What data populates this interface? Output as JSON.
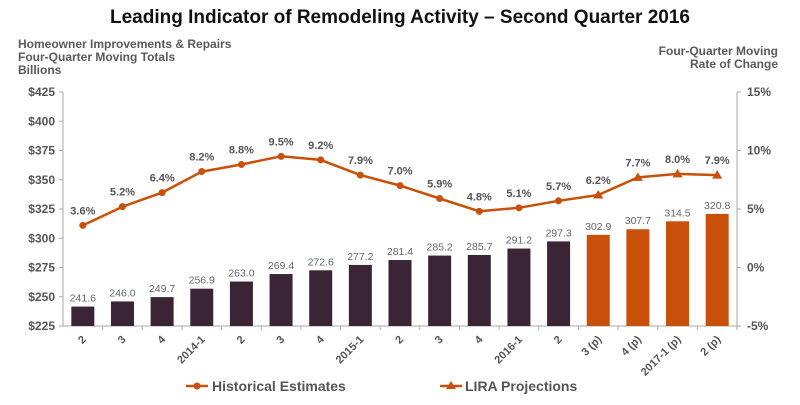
{
  "chart_data": {
    "type": "bar+line",
    "title": "Leading Indicator of Remodeling Activity – Second Quarter 2016",
    "ylabel_left": [
      "Homeowner Improvements & Repairs",
      "Four-Quarter Moving Totals",
      "Billions"
    ],
    "ylabel_right": [
      "Four-Quarter Moving",
      "Rate of Change"
    ],
    "left_axis": {
      "range": [
        225,
        425
      ],
      "ticks": [
        "$225",
        "$250",
        "$275",
        "$300",
        "$325",
        "$350",
        "$375",
        "$400",
        "$425"
      ]
    },
    "right_axis": {
      "range": [
        -5,
        15
      ],
      "ticks": [
        "-5%",
        "0%",
        "5%",
        "10%",
        "15%"
      ]
    },
    "categories": [
      "2",
      "3",
      "4",
      "2014-1",
      "2",
      "3",
      "4",
      "2015-1",
      "2",
      "3",
      "4",
      "2016-1",
      "2",
      "3 (p)",
      "4 (p)",
      "2017-1 (p)",
      "2 (p)"
    ],
    "bar_values": [
      241.6,
      246.0,
      249.7,
      256.9,
      263.0,
      269.4,
      272.6,
      277.2,
      281.4,
      285.2,
      285.7,
      291.2,
      297.3,
      302.9,
      307.7,
      314.5,
      320.8
    ],
    "bar_labels": [
      "241.6",
      "246.0",
      "249.7",
      "256.9",
      "263.0",
      "269.4",
      "272.6",
      "277.2",
      "281.4",
      "285.2",
      "285.7",
      "291.2",
      "297.3",
      "302.9",
      "307.7",
      "314.5",
      "320.8"
    ],
    "rate_values": [
      3.6,
      5.2,
      6.4,
      8.2,
      8.8,
      9.5,
      9.2,
      7.9,
      7.0,
      5.9,
      4.8,
      5.1,
      5.7,
      6.2,
      7.7,
      8.0,
      7.9
    ],
    "rate_labels": [
      "3.6%",
      "5.2%",
      "6.4%",
      "8.2%",
      "8.8%",
      "9.5%",
      "9.2%",
      "7.9%",
      "7.0%",
      "5.9%",
      "4.8%",
      "5.1%",
      "5.7%",
      "6.2%",
      "7.7%",
      "8.0%",
      "7.9%"
    ],
    "projection_start_index": 13,
    "series": [
      {
        "name": "Historical Estimates",
        "marker": "circle"
      },
      {
        "name": "LIRA Projections",
        "marker": "triangle"
      }
    ],
    "legend_placement": "bottom",
    "grid": false,
    "colors": {
      "historical_bar": "#3b2436",
      "projection_bar": "#c8500a",
      "line": "#c8500a",
      "text": "#5a5a5a",
      "title": "#111111"
    }
  }
}
